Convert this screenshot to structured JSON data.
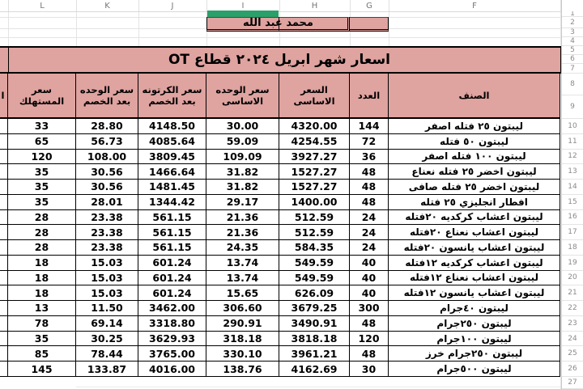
{
  "title_cell": "اسعار شهر ابريل ٢٠٢٤ قطاع OT",
  "name_cell": "محمد عبد الله",
  "clipped_header_fragment": "ا",
  "column_letters": [
    "L",
    "K",
    "J",
    "I",
    "H",
    "G",
    "F"
  ],
  "row_numbers": [
    "1",
    "2",
    "3",
    "4",
    "5",
    "6",
    "7",
    "8",
    "9",
    "10",
    "11",
    "12",
    "13",
    "14",
    "15",
    "16",
    "17",
    "18",
    "19",
    "20",
    "21",
    "22",
    "23",
    "24",
    "25",
    "26",
    "27"
  ],
  "table": {
    "column_keys": [
      "consumer-price",
      "unit-price-after-discount",
      "carton-price-after-discount",
      "base-unit-price",
      "base-price",
      "quantity",
      "item"
    ],
    "headers": [
      "سعر المستهلك",
      "سعر الوحده بعد الخصم",
      "سعر الكرتونه بعد الخصم",
      "سعر الوحده الاساسى",
      "السعر الاساسى",
      "العدد",
      "الصنف"
    ],
    "rows": [
      {
        "n": "10",
        "cells": [
          "33",
          "28.80",
          "4148.50",
          "30.00",
          "4320.00",
          "144",
          "ليبتون ٢٥ فتله اصفر"
        ]
      },
      {
        "n": "11",
        "cells": [
          "65",
          "56.73",
          "4085.64",
          "59.09",
          "4254.55",
          "72",
          "ليبتون ٥٠ فتله"
        ]
      },
      {
        "n": "12",
        "cells": [
          "120",
          "108.00",
          "3809.45",
          "109.09",
          "3927.27",
          "36",
          "ليبتون ١٠٠ فتله اصفر"
        ]
      },
      {
        "n": "13",
        "cells": [
          "35",
          "30.56",
          "1466.64",
          "31.82",
          "1527.27",
          "48",
          "ليبتون اخضر ٢٥ فتله نعناع"
        ]
      },
      {
        "n": "14",
        "cells": [
          "35",
          "30.56",
          "1481.45",
          "31.82",
          "1527.27",
          "48",
          "ليبتون اخضر ٢٥ فتله صافى"
        ]
      },
      {
        "n": "15",
        "cells": [
          "35",
          "28.01",
          "1344.42",
          "29.17",
          "1400.00",
          "48",
          "افطار انجليزي ٢٥ فتله"
        ]
      },
      {
        "n": "16",
        "cells": [
          "28",
          "23.38",
          "561.15",
          "21.36",
          "512.59",
          "24",
          "ليبتون اعشاب كركديه ٢٠فتله"
        ]
      },
      {
        "n": "17",
        "cells": [
          "28",
          "23.38",
          "561.15",
          "21.36",
          "512.59",
          "24",
          "ليبتون اعشاب نعناع ٢٠فتله"
        ]
      },
      {
        "n": "18",
        "cells": [
          "28",
          "23.38",
          "561.15",
          "24.35",
          "584.35",
          "24",
          "ليبتون اعشاب يانسون ٢٠فتله"
        ]
      },
      {
        "n": "19",
        "cells": [
          "18",
          "15.03",
          "601.24",
          "13.74",
          "549.59",
          "40",
          "ليبتون اعشاب كركديه ١٢فتله"
        ]
      },
      {
        "n": "20",
        "cells": [
          "18",
          "15.03",
          "601.24",
          "13.74",
          "549.59",
          "40",
          "ليبتون اعشاب نعناع ١٢فتله"
        ]
      },
      {
        "n": "21",
        "cells": [
          "18",
          "15.03",
          "601.24",
          "15.65",
          "626.09",
          "40",
          "ليبتون اعشاب يانسون ١٢فتله"
        ]
      },
      {
        "n": "22",
        "cells": [
          "13",
          "11.50",
          "3462.00",
          "306.60",
          "3679.25",
          "300",
          "ليبتون ٤٠جرام"
        ]
      },
      {
        "n": "23",
        "cells": [
          "78",
          "69.14",
          "3318.80",
          "290.91",
          "3490.91",
          "48",
          "ليبتون ٢٥٠جرام"
        ]
      },
      {
        "n": "24",
        "cells": [
          "35",
          "30.25",
          "3629.93",
          "318.18",
          "3818.18",
          "120",
          "ليبتون ١٠٠جرام"
        ]
      },
      {
        "n": "25",
        "cells": [
          "85",
          "78.44",
          "3765.00",
          "330.10",
          "3961.21",
          "48",
          "ليبتون ٢٥٠جرام خرز"
        ]
      },
      {
        "n": "26",
        "cells": [
          "145",
          "133.87",
          "4016.00",
          "138.76",
          "4162.69",
          "30",
          "ليبتون ٥٠٠جرام"
        ]
      }
    ]
  },
  "colors": {
    "band_pink": "#dfa3a0",
    "selection_green": "#2ba06a",
    "table_border": "#000000",
    "gridline": "#e4e4e4"
  }
}
